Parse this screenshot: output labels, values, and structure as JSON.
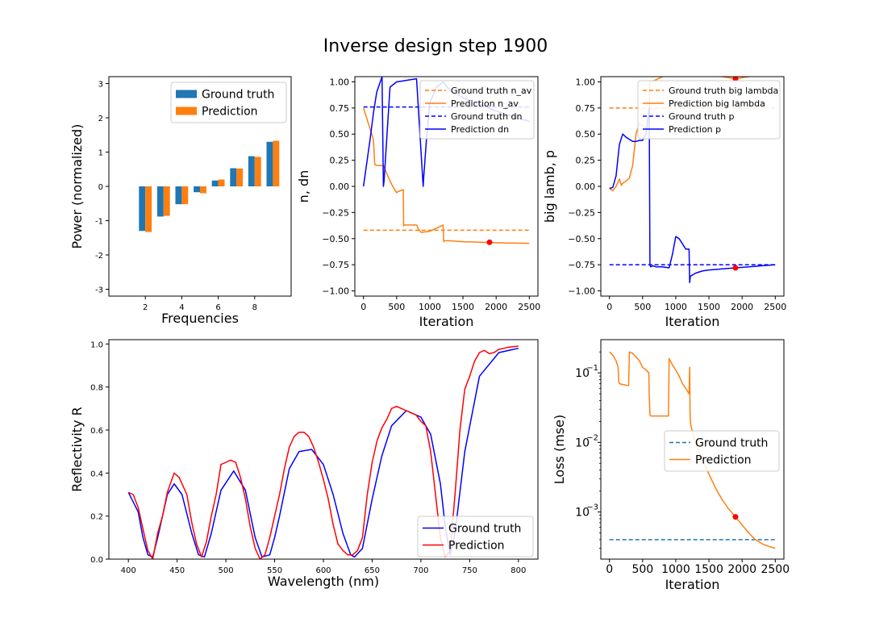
{
  "suptitle": "Inverse design step 1900",
  "colors": {
    "ground_truth": "#1f77b4",
    "prediction": "#ff7f0e",
    "blue": "#0000ff",
    "red": "#ff0000",
    "axis": "#000000"
  },
  "chart_data": [
    {
      "id": "power",
      "type": "bar",
      "xlabel": "Frequencies",
      "ylabel": "Power (normalized)",
      "xlim": [
        0,
        10
      ],
      "ylim": [
        -3.2,
        3.2
      ],
      "xticks": [
        2,
        4,
        6,
        8
      ],
      "yticks": [
        -3,
        -2,
        -1,
        0,
        1,
        2,
        3
      ],
      "categories": [
        2,
        3,
        4,
        5,
        6,
        7,
        8,
        9
      ],
      "series": [
        {
          "name": "Ground truth",
          "color": "#1f77b4",
          "values": [
            -1.3,
            -0.88,
            -0.52,
            -0.17,
            0.17,
            0.53,
            0.88,
            1.3
          ]
        },
        {
          "name": "Prediction",
          "color": "#ff7f0e",
          "values": [
            -1.33,
            -0.86,
            -0.52,
            -0.2,
            0.2,
            0.52,
            0.86,
            1.33
          ]
        }
      ],
      "legend": "top-right"
    },
    {
      "id": "nav_dn",
      "type": "line",
      "xlabel": "Iteration",
      "ylabel": "n, dn",
      "xlim": [
        -130,
        2630
      ],
      "ylim": [
        -1.05,
        1.05
      ],
      "xticks": [
        0,
        500,
        1000,
        1500,
        2000,
        2500
      ],
      "yticks": [
        -1.0,
        -0.75,
        -0.5,
        -0.25,
        0.0,
        0.25,
        0.5,
        0.75,
        1.0
      ],
      "ytick_labels": [
        "−1.00",
        "−0.75",
        "−0.50",
        "−0.25",
        "0.00",
        "0.25",
        "0.50",
        "0.75",
        "1.00"
      ],
      "series": [
        {
          "name": "Ground truth n_av",
          "color": "#ff7f0e",
          "dash": true,
          "x": [
            0,
            2500
          ],
          "y": [
            -0.42,
            -0.42
          ]
        },
        {
          "name": "Prediction n_av",
          "color": "#ff7f0e",
          "dash": false,
          "x": [
            0,
            40,
            100,
            150,
            170,
            200,
            300,
            400,
            450,
            500,
            520,
            600,
            605,
            610,
            800,
            830,
            870,
            1000,
            1100,
            1200,
            1210,
            1220,
            1300,
            1500,
            1800,
            2000,
            2200,
            2500
          ],
          "y": [
            0.75,
            0.67,
            0.55,
            0.45,
            0.21,
            0.2,
            0.2,
            0.05,
            -0.01,
            -0.06,
            -0.05,
            -0.03,
            -0.38,
            -0.37,
            -0.37,
            -0.41,
            -0.44,
            -0.43,
            -0.4,
            -0.37,
            -0.53,
            -0.52,
            -0.52,
            -0.53,
            -0.535,
            -0.54,
            -0.542,
            -0.545
          ]
        },
        {
          "name": "Ground truth dn",
          "color": "#0000ff",
          "dash": true,
          "x": [
            0,
            2500
          ],
          "y": [
            0.76,
            0.76
          ]
        },
        {
          "name": "Prediction dn",
          "color": "#0000ff",
          "dash": false,
          "x": [
            0,
            100,
            150,
            200,
            280,
            300,
            310,
            350,
            400,
            500,
            600,
            700,
            800,
            900,
            910,
            950,
            1000,
            1100,
            1200,
            1300,
            1500,
            2000,
            2500
          ],
          "y": [
            0.0,
            0.45,
            0.7,
            0.9,
            1.05,
            0.0,
            0.05,
            0.45,
            0.95,
            1.0,
            1.01,
            1.02,
            1.03,
            0.0,
            0.1,
            0.45,
            0.8,
            0.95,
            1.0,
            0.92,
            0.85,
            0.72,
            0.62
          ]
        }
      ],
      "marker": {
        "x": 1900,
        "y": -0.535,
        "color": "#ff0000"
      },
      "legend": "top-right"
    },
    {
      "id": "biglamb_p",
      "type": "line",
      "xlabel": "Iteration",
      "ylabel": "big lamb, p",
      "xlim": [
        -130,
        2630
      ],
      "ylim": [
        -1.05,
        1.05
      ],
      "xticks": [
        0,
        500,
        1000,
        1500,
        2000,
        2500
      ],
      "yticks": [
        -1.0,
        -0.75,
        -0.5,
        -0.25,
        0.0,
        0.25,
        0.5,
        0.75,
        1.0
      ],
      "ytick_labels": [
        "−1.00",
        "−0.75",
        "−0.50",
        "−0.25",
        "0.00",
        "0.25",
        "0.50",
        "0.75",
        "1.00"
      ],
      "series": [
        {
          "name": "Ground truth big lambda",
          "color": "#ff7f0e",
          "dash": true,
          "x": [
            0,
            2500
          ],
          "y": [
            0.75,
            0.75
          ]
        },
        {
          "name": "Prediction big lambda",
          "color": "#ff7f0e",
          "dash": false,
          "x": [
            0,
            50,
            100,
            150,
            180,
            200,
            250,
            300,
            350,
            400,
            450,
            500,
            580,
            600,
            605,
            700,
            800,
            900,
            1000,
            1100,
            1300,
            1500,
            1700,
            1900,
            2100,
            2500
          ],
          "y": [
            -0.02,
            -0.04,
            0.0,
            0.07,
            0.01,
            0.03,
            0.05,
            0.08,
            0.2,
            0.5,
            0.6,
            0.58,
            0.55,
            0.6,
            1.0,
            1.02,
            1.05,
            1.08,
            1.1,
            1.1,
            1.1,
            1.08,
            1.05,
            1.03,
            1.05,
            1.08
          ]
        },
        {
          "name": "Ground truth p",
          "color": "#0000ff",
          "dash": true,
          "x": [
            0,
            2500
          ],
          "y": [
            -0.75,
            -0.75
          ]
        },
        {
          "name": "Prediction p",
          "color": "#0000ff",
          "dash": false,
          "x": [
            0,
            50,
            100,
            150,
            200,
            250,
            300,
            350,
            400,
            450,
            500,
            550,
            600,
            610,
            620,
            650,
            700,
            800,
            900,
            950,
            1000,
            1050,
            1100,
            1150,
            1200,
            1210,
            1220,
            1300,
            1400,
            1500,
            1700,
            1900,
            2100,
            2300,
            2500
          ],
          "y": [
            -0.02,
            -0.01,
            0.1,
            0.4,
            0.5,
            0.47,
            0.45,
            0.43,
            0.43,
            0.44,
            0.44,
            0.5,
            0.75,
            -0.75,
            -0.77,
            -0.76,
            -0.77,
            -0.77,
            -0.78,
            -0.65,
            -0.48,
            -0.5,
            -0.55,
            -0.6,
            -0.6,
            -0.92,
            -0.86,
            -0.83,
            -0.81,
            -0.8,
            -0.79,
            -0.78,
            -0.77,
            -0.76,
            -0.75
          ]
        }
      ],
      "marker": {
        "x": 1900,
        "y": -0.78,
        "color": "#ff0000"
      },
      "marker2": {
        "x": 1900,
        "y": 1.03,
        "color": "#ff0000"
      },
      "legend": "top-right"
    },
    {
      "id": "reflectivity",
      "type": "line",
      "xlabel": "Wavelength (nm)",
      "ylabel": "Reflectivity R",
      "xlim": [
        380,
        820
      ],
      "ylim": [
        0.0,
        1.02
      ],
      "xticks": [
        400,
        450,
        500,
        550,
        600,
        650,
        700,
        750,
        800
      ],
      "yticks": [
        0.0,
        0.2,
        0.4,
        0.6,
        0.8,
        1.0
      ],
      "ytick_labels": [
        "0.0",
        "0.2",
        "0.4",
        "0.6",
        "0.8",
        "1.0"
      ],
      "series": [
        {
          "name": "Ground truth",
          "color": "#0000ff",
          "x": [
            400,
            410,
            415,
            420,
            425,
            430,
            440,
            447,
            455,
            465,
            472,
            478,
            485,
            495,
            508,
            520,
            530,
            537,
            545,
            550,
            555,
            565,
            575,
            588,
            600,
            610,
            620,
            628,
            632,
            640,
            650,
            660,
            670,
            685,
            700,
            710,
            720,
            725,
            730,
            735,
            745,
            760,
            780,
            800
          ],
          "y": [
            0.31,
            0.22,
            0.1,
            0.02,
            0.01,
            0.1,
            0.3,
            0.35,
            0.3,
            0.12,
            0.02,
            0.01,
            0.12,
            0.32,
            0.41,
            0.32,
            0.1,
            0.01,
            0.02,
            0.1,
            0.2,
            0.42,
            0.5,
            0.51,
            0.44,
            0.3,
            0.12,
            0.02,
            0.01,
            0.05,
            0.28,
            0.48,
            0.62,
            0.69,
            0.66,
            0.58,
            0.35,
            0.15,
            0.02,
            0.12,
            0.5,
            0.85,
            0.96,
            0.98
          ]
        },
        {
          "name": "Prediction",
          "color": "#ff0000",
          "x": [
            400,
            405,
            410,
            415,
            420,
            425,
            430,
            435,
            440,
            447,
            452,
            455,
            460,
            465,
            470,
            475,
            480,
            485,
            490,
            495,
            500,
            505,
            510,
            515,
            520,
            525,
            530,
            535,
            540,
            545,
            550,
            555,
            560,
            565,
            570,
            575,
            580,
            585,
            590,
            595,
            600,
            605,
            610,
            615,
            620,
            625,
            630,
            635,
            640,
            645,
            650,
            655,
            660,
            665,
            670,
            675,
            680,
            685,
            690,
            695,
            700,
            705,
            710,
            715,
            720,
            725,
            730,
            735,
            740,
            745,
            750,
            755,
            760,
            765,
            770,
            775,
            780,
            785,
            790,
            800
          ],
          "y": [
            0.31,
            0.3,
            0.24,
            0.14,
            0.04,
            0.0,
            0.12,
            0.2,
            0.31,
            0.4,
            0.38,
            0.35,
            0.3,
            0.17,
            0.07,
            0.01,
            0.08,
            0.2,
            0.3,
            0.44,
            0.45,
            0.46,
            0.45,
            0.38,
            0.28,
            0.15,
            0.05,
            0.0,
            0.02,
            0.1,
            0.2,
            0.3,
            0.42,
            0.52,
            0.57,
            0.59,
            0.59,
            0.57,
            0.52,
            0.45,
            0.37,
            0.28,
            0.16,
            0.07,
            0.04,
            0.02,
            0.02,
            0.04,
            0.1,
            0.3,
            0.45,
            0.55,
            0.61,
            0.65,
            0.7,
            0.71,
            0.7,
            0.69,
            0.68,
            0.67,
            0.64,
            0.62,
            0.5,
            0.3,
            0.1,
            0.01,
            0.04,
            0.3,
            0.6,
            0.79,
            0.85,
            0.92,
            0.96,
            0.97,
            0.955,
            0.96,
            0.975,
            0.98,
            0.985,
            0.99
          ]
        }
      ],
      "legend": "bottom-right"
    },
    {
      "id": "loss",
      "type": "line",
      "xlabel": "Iteration",
      "ylabel": "Loss (mse)",
      "yscale": "log",
      "xlim": [
        -130,
        2630
      ],
      "ylim": [
        0.00021,
        0.3
      ],
      "xticks": [
        0,
        500,
        1000,
        1500,
        2000,
        2500
      ],
      "yticks": [
        0.001,
        0.01,
        0.1
      ],
      "ytick_labels": [
        "10",
        "10",
        "10"
      ],
      "ytick_exponents": [
        "−3",
        "−2",
        "−1"
      ],
      "series": [
        {
          "name": "Ground truth",
          "color": "#1f77b4",
          "dash": true,
          "x": [
            0,
            2500
          ],
          "y": [
            0.0004,
            0.0004
          ]
        },
        {
          "name": "Prediction",
          "color": "#ff7f0e",
          "dash": false,
          "x": [
            0,
            50,
            100,
            130,
            140,
            150,
            200,
            270,
            290,
            300,
            350,
            400,
            450,
            500,
            550,
            595,
            600,
            610,
            620,
            650,
            700,
            800,
            890,
            900,
            950,
            1000,
            1050,
            1100,
            1150,
            1200,
            1210,
            1215,
            1220,
            1230,
            1300,
            1400,
            1500,
            1600,
            1700,
            1800,
            1900,
            2000,
            2100,
            2200,
            2300,
            2400,
            2500
          ],
          "y": [
            0.2,
            0.18,
            0.15,
            0.12,
            0.075,
            0.07,
            0.068,
            0.066,
            0.066,
            0.2,
            0.19,
            0.17,
            0.15,
            0.12,
            0.11,
            0.1,
            0.05,
            0.025,
            0.024,
            0.024,
            0.024,
            0.024,
            0.024,
            0.16,
            0.13,
            0.11,
            0.09,
            0.07,
            0.06,
            0.05,
            0.12,
            0.03,
            0.02,
            0.017,
            0.0098,
            0.0055,
            0.0035,
            0.0022,
            0.0015,
            0.0011,
            0.00085,
            0.00065,
            0.0005,
            0.0004,
            0.00035,
            0.00032,
            0.0003
          ]
        }
      ],
      "marker": {
        "x": 1900,
        "y": 0.00085,
        "color": "#ff0000"
      },
      "legend": "center-right"
    }
  ]
}
